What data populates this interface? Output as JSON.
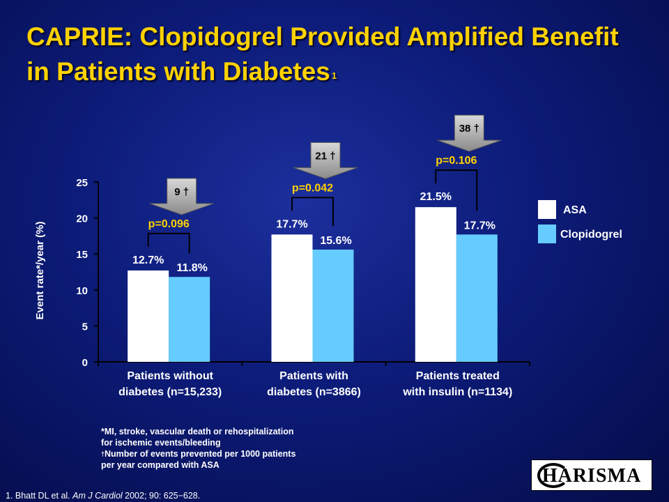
{
  "slide": {
    "title": "CAPRIE: Clopidogrel Provided Amplified Benefit in Patients with Diabetes",
    "title_superscript": "1",
    "footnote_line1": "*MI, stroke, vascular death or rehospitalization",
    "footnote_line2": "for ischemic events/bleeding",
    "footnote_dagger": "†",
    "footnote_line3": "Number of events prevented per 1000 patients",
    "footnote_line4": "per year compared with ASA",
    "reference_pre": "1. Bhatt DL et al. ",
    "reference_journal": "Am J Cardiol",
    "reference_post": " 2002; 90: 625−628.",
    "logo_text": "HARISMA"
  },
  "chart_data": {
    "type": "bar",
    "ylabel": "Event rate*/year (%)",
    "ylim": [
      0,
      25
    ],
    "yticks": [
      "0",
      "5",
      "10",
      "15",
      "20",
      "25"
    ],
    "categories": [
      [
        "Patients without",
        "diabetes (n=15,233)"
      ],
      [
        "Patients with",
        "diabetes (n=3866)"
      ],
      [
        "Patients treated",
        "with insulin (n=1134)"
      ]
    ],
    "series": [
      {
        "name": "ASA",
        "color": "#ffffff",
        "values": [
          12.7,
          17.7,
          21.5
        ],
        "labels": [
          "12.7%",
          "17.7%",
          "21.5%"
        ]
      },
      {
        "name": "Clopidogrel",
        "color": "#66ccff",
        "values": [
          11.8,
          15.6,
          17.7
        ],
        "labels": [
          "11.8%",
          "15.6%",
          "17.7%"
        ]
      }
    ],
    "p_values": [
      "p=0.096",
      "p=0.042",
      "p=0.106"
    ],
    "events_prevented": [
      "9 †",
      "21 †",
      "38 †"
    ],
    "legend_position": "right",
    "grid": false
  }
}
